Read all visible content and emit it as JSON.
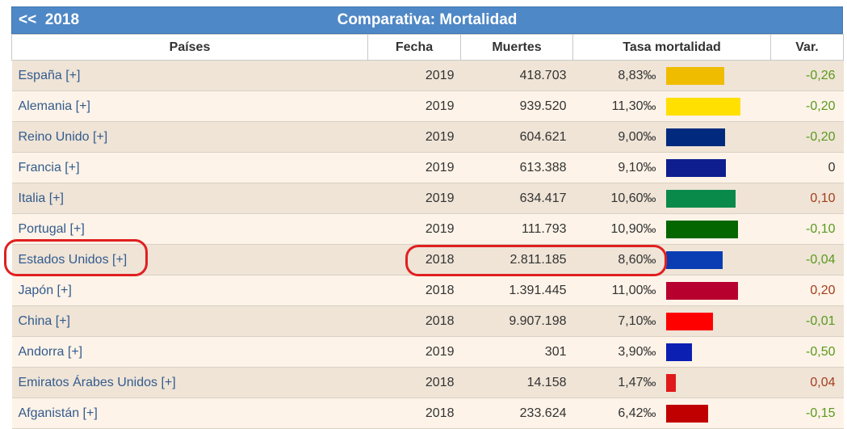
{
  "header": {
    "back_label": "<<",
    "year": "2018",
    "title": "Comparativa: Mortalidad"
  },
  "columns": [
    "Países",
    "Fecha",
    "Muertes",
    "Tasa mortalidad",
    "Var."
  ],
  "rows": [
    {
      "pais": "España [+]",
      "fecha": "2019",
      "muertes": "418.703",
      "tasa": "8,83‰",
      "tasa_value": 8.83,
      "color": "#f0bc00",
      "var": "-0,26",
      "sign": "neg"
    },
    {
      "pais": "Alemania [+]",
      "fecha": "2019",
      "muertes": "939.520",
      "tasa": "11,30‰",
      "tasa_value": 11.3,
      "color": "#ffe000",
      "var": "-0,20",
      "sign": "neg"
    },
    {
      "pais": "Reino Unido [+]",
      "fecha": "2019",
      "muertes": "604.621",
      "tasa": "9,00‰",
      "tasa_value": 9.0,
      "color": "#012a7e",
      "var": "-0,20",
      "sign": "neg"
    },
    {
      "pais": "Francia [+]",
      "fecha": "2019",
      "muertes": "613.388",
      "tasa": "9,10‰",
      "tasa_value": 9.1,
      "color": "#0f1e8e",
      "var": "0",
      "sign": "zero"
    },
    {
      "pais": "Italia [+]",
      "fecha": "2019",
      "muertes": "634.417",
      "tasa": "10,60‰",
      "tasa_value": 10.6,
      "color": "#0a8a4a",
      "var": "0,10",
      "sign": "pos"
    },
    {
      "pais": "Portugal [+]",
      "fecha": "2019",
      "muertes": "111.793",
      "tasa": "10,90‰",
      "tasa_value": 10.9,
      "color": "#036600",
      "var": "-0,10",
      "sign": "neg"
    },
    {
      "pais": "Estados Unidos [+]",
      "fecha": "2018",
      "muertes": "2.811.185",
      "tasa": "8,60‰",
      "tasa_value": 8.6,
      "color": "#0a3db4",
      "var": "-0,04",
      "sign": "neg"
    },
    {
      "pais": "Japón [+]",
      "fecha": "2018",
      "muertes": "1.391.445",
      "tasa": "11,00‰",
      "tasa_value": 11.0,
      "color": "#b8002e",
      "var": "0,20",
      "sign": "pos"
    },
    {
      "pais": "China [+]",
      "fecha": "2018",
      "muertes": "9.907.198",
      "tasa": "7,10‰",
      "tasa_value": 7.1,
      "color": "#ff0000",
      "var": "-0,01",
      "sign": "neg"
    },
    {
      "pais": "Andorra [+]",
      "fecha": "2019",
      "muertes": "301",
      "tasa": "3,90‰",
      "tasa_value": 3.9,
      "color": "#0b1fb2",
      "var": "-0,50",
      "sign": "neg"
    },
    {
      "pais": "Emiratos Árabes Unidos [+]",
      "fecha": "2018",
      "muertes": "14.158",
      "tasa": "1,47‰",
      "tasa_value": 1.47,
      "color": "#e01a1a",
      "var": "0,04",
      "sign": "pos"
    },
    {
      "pais": "Afganistán [+]",
      "fecha": "2018",
      "muertes": "233.624",
      "tasa": "6,42‰",
      "tasa_value": 6.42,
      "color": "#c00000",
      "var": "-0,15",
      "sign": "neg"
    }
  ]
}
